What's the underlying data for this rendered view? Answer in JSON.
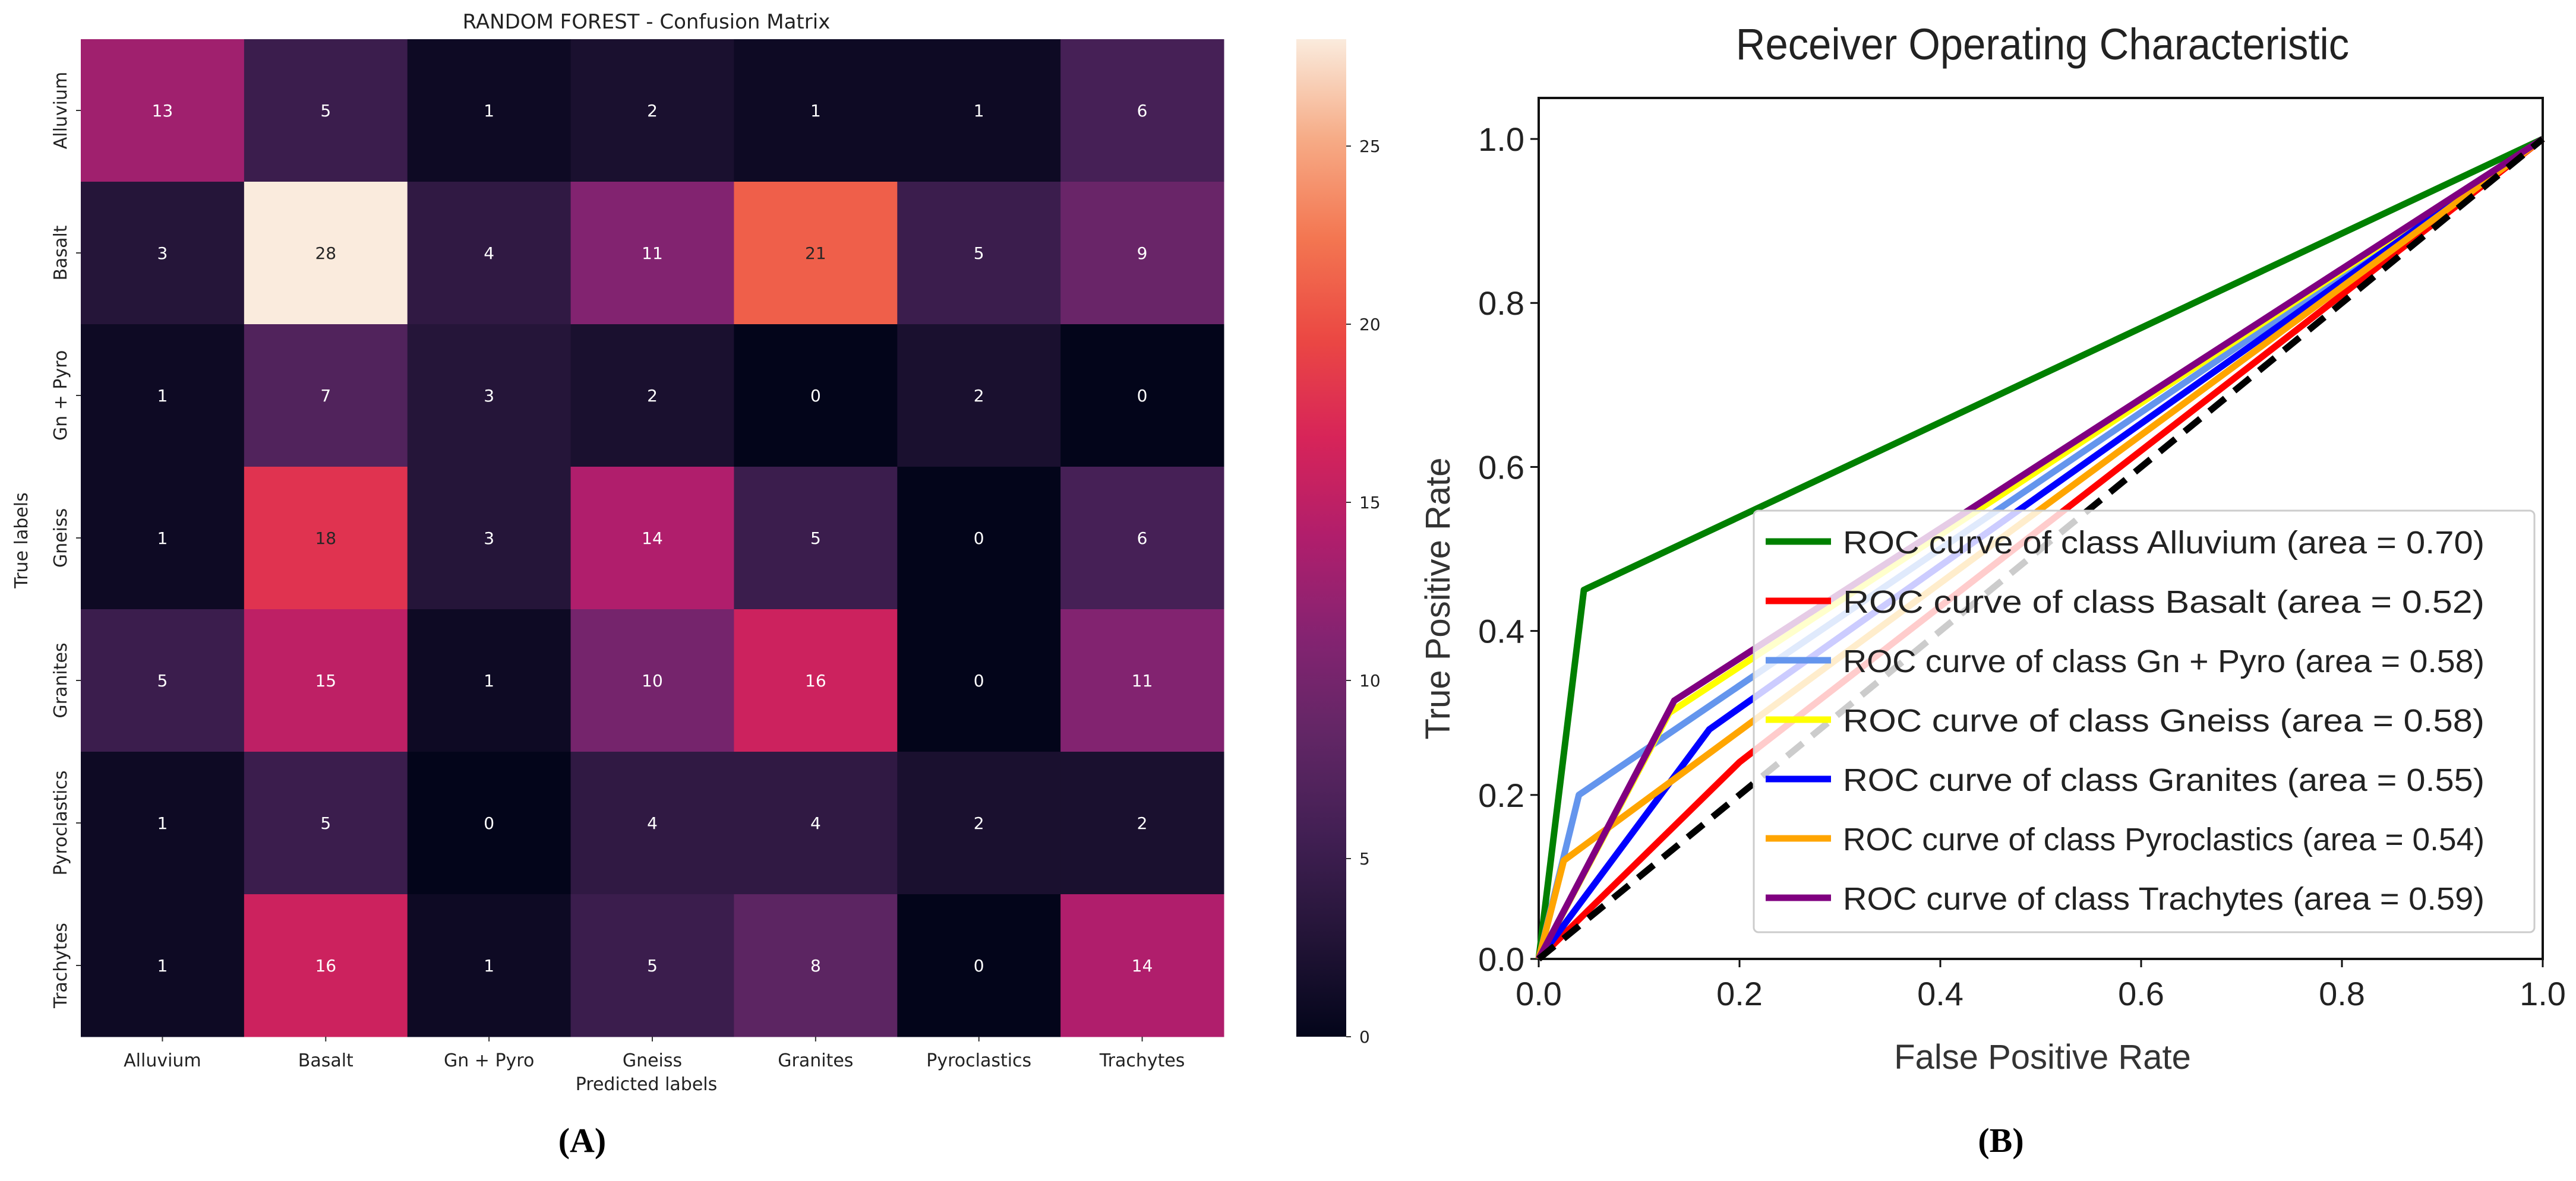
{
  "panel_labels": [
    "(A)",
    "(B)"
  ],
  "chart_data": [
    {
      "type": "heatmap",
      "title": "RANDOM FOREST - Confusion Matrix",
      "xlabel": "Predicted labels",
      "ylabel": "True labels",
      "row_labels": [
        "Alluvium",
        "Basalt",
        "Gn + Pyro",
        "Gneiss",
        "Granites",
        "Pyroclastics",
        "Trachytes"
      ],
      "col_labels": [
        "Alluvium",
        "Basalt",
        "Gn + Pyro",
        "Gneiss",
        "Granites",
        "Pyroclastics",
        "Trachytes"
      ],
      "values": [
        [
          13,
          5,
          1,
          2,
          1,
          1,
          6
        ],
        [
          3,
          28,
          4,
          11,
          21,
          5,
          9
        ],
        [
          1,
          7,
          3,
          2,
          0,
          2,
          0
        ],
        [
          1,
          18,
          3,
          14,
          5,
          0,
          6
        ],
        [
          5,
          15,
          1,
          10,
          16,
          0,
          11
        ],
        [
          1,
          5,
          0,
          4,
          4,
          2,
          2
        ],
        [
          1,
          16,
          1,
          5,
          8,
          0,
          14
        ]
      ],
      "colorbar": {
        "range": [
          0,
          28
        ],
        "ticks": [
          0,
          5,
          10,
          15,
          20,
          25
        ],
        "colormap": "rocket"
      }
    },
    {
      "type": "line",
      "title": "Receiver Operating Characteristic",
      "xlabel": "False Positive Rate",
      "ylabel": "True Positive Rate",
      "xlim": [
        0.0,
        1.0
      ],
      "ylim": [
        0.0,
        1.05
      ],
      "xticks": [
        "0.0",
        "0.2",
        "0.4",
        "0.6",
        "0.8",
        "1.0"
      ],
      "yticks": [
        "0.0",
        "0.2",
        "0.4",
        "0.6",
        "0.8",
        "1.0"
      ],
      "legend_location": "lower-right",
      "series": [
        {
          "name": "ROC curve of class Alluvium (area = 0.70)",
          "color": "#008000",
          "x": [
            0,
            0.045,
            1
          ],
          "y": [
            0,
            0.45,
            1
          ]
        },
        {
          "name": "ROC curve of class Basalt (area = 0.52)",
          "color": "#ff0000",
          "x": [
            0,
            0.2,
            1
          ],
          "y": [
            0,
            0.24,
            1
          ]
        },
        {
          "name": "ROC curve of class Gn + Pyro (area = 0.58)",
          "color": "#6495ed",
          "x": [
            0,
            0.04,
            1
          ],
          "y": [
            0,
            0.2,
            1
          ]
        },
        {
          "name": "ROC curve of class Gneiss (area = 0.58)",
          "color": "#ffff00",
          "x": [
            0,
            0.13,
            1
          ],
          "y": [
            0,
            0.3,
            1
          ]
        },
        {
          "name": "ROC curve of class Granites (area = 0.55)",
          "color": "#0000ff",
          "x": [
            0,
            0.17,
            1
          ],
          "y": [
            0,
            0.28,
            1
          ]
        },
        {
          "name": "ROC curve of class Pyroclastics (area = 0.54)",
          "color": "#ffa500",
          "x": [
            0,
            0.025,
            1
          ],
          "y": [
            0,
            0.12,
            1
          ]
        },
        {
          "name": "ROC curve of class Trachytes (area = 0.59)",
          "color": "#800080",
          "x": [
            0,
            0.135,
            1
          ],
          "y": [
            0,
            0.315,
            1
          ]
        }
      ],
      "diagonal": {
        "color": "#000000",
        "style": "dashed"
      }
    }
  ]
}
